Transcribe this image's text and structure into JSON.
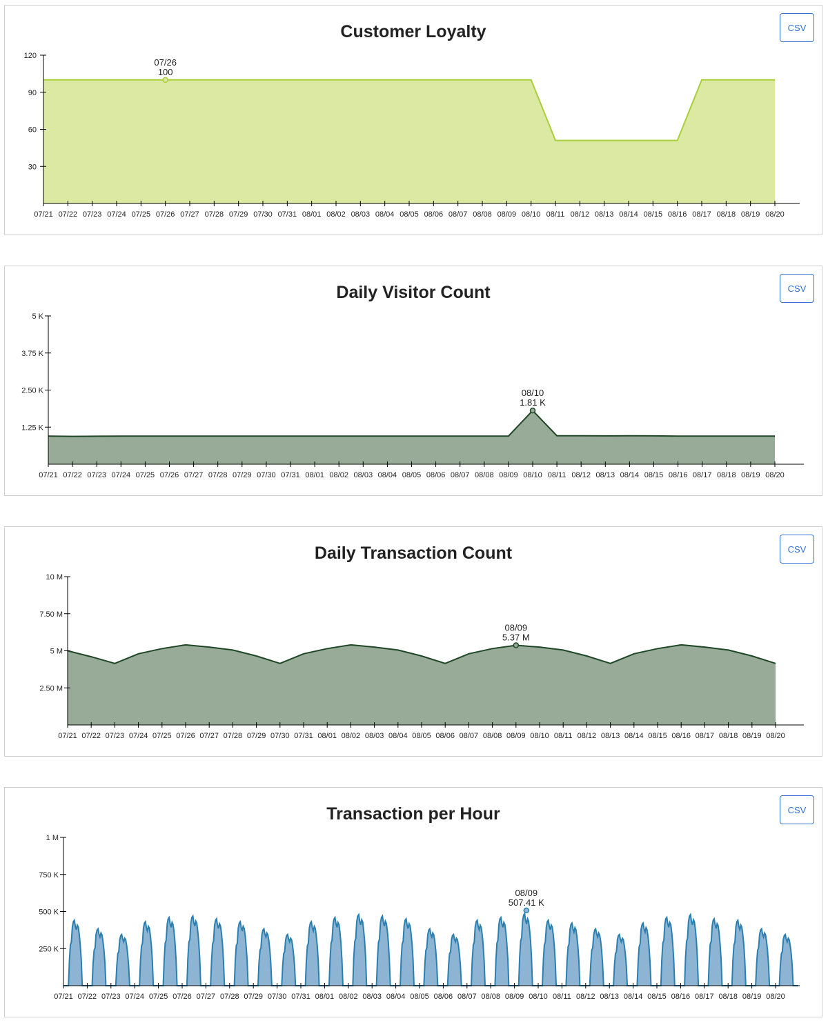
{
  "csv_label": "CSV",
  "dates": [
    "07/21",
    "07/22",
    "07/23",
    "07/24",
    "07/25",
    "07/26",
    "07/27",
    "07/28",
    "07/29",
    "07/30",
    "07/31",
    "08/01",
    "08/02",
    "08/03",
    "08/04",
    "08/05",
    "08/06",
    "08/07",
    "08/08",
    "08/09",
    "08/10",
    "08/11",
    "08/12",
    "08/13",
    "08/14",
    "08/15",
    "08/16",
    "08/17",
    "08/18",
    "08/19",
    "08/20"
  ],
  "chart_data": [
    {
      "type": "area",
      "title": "Customer Loyalty",
      "color": "#a8cf3a",
      "fill": "#dbe9a3",
      "ylim": [
        0,
        120
      ],
      "yticks": [
        {
          "v": 30,
          "label": "30"
        },
        {
          "v": 60,
          "label": "60"
        },
        {
          "v": 90,
          "label": "90"
        },
        {
          "v": 120,
          "label": "120"
        }
      ],
      "values": [
        100,
        100,
        100,
        100,
        100,
        100,
        100,
        100,
        100,
        100,
        100,
        100,
        100,
        100,
        100,
        100,
        100,
        100,
        100,
        100,
        100,
        51,
        51,
        51,
        51,
        51,
        51,
        100,
        100,
        100,
        100
      ],
      "highlight": {
        "index": 5,
        "date_label": "07/26",
        "value_label": "100"
      }
    },
    {
      "type": "area",
      "title": "Daily Visitor Count",
      "color": "#1f4726",
      "fill": "#97ab98",
      "ylim": [
        0,
        5000
      ],
      "yticks": [
        {
          "v": 1250,
          "label": "1.25 K"
        },
        {
          "v": 2500,
          "label": "2.50 K"
        },
        {
          "v": 3750,
          "label": "3.75 K"
        },
        {
          "v": 5000,
          "label": "5 K"
        }
      ],
      "values": [
        950,
        940,
        945,
        950,
        950,
        950,
        950,
        950,
        950,
        950,
        950,
        950,
        950,
        950,
        950,
        950,
        950,
        950,
        950,
        950,
        1810,
        960,
        960,
        955,
        960,
        955,
        950,
        950,
        950,
        950,
        950
      ],
      "highlight": {
        "index": 20,
        "date_label": "08/10",
        "value_label": "1.81 K"
      }
    },
    {
      "type": "area",
      "title": "Daily Transaction Count",
      "color": "#1f4726",
      "fill": "#97ab98",
      "ylim": [
        0,
        10000000
      ],
      "yticks": [
        {
          "v": 2500000,
          "label": "2.50 M"
        },
        {
          "v": 5000000,
          "label": "5 M"
        },
        {
          "v": 7500000,
          "label": "7.50 M"
        },
        {
          "v": 10000000,
          "label": "10 M"
        }
      ],
      "values": [
        5000000,
        4600000,
        4150000,
        4800000,
        5150000,
        5400000,
        5250000,
        5050000,
        4650000,
        4150000,
        4800000,
        5150000,
        5400000,
        5250000,
        5050000,
        4650000,
        4150000,
        4800000,
        5150000,
        5370000,
        5250000,
        5050000,
        4650000,
        4150000,
        4800000,
        5150000,
        5400000,
        5250000,
        5050000,
        4650000,
        4150000
      ],
      "highlight": {
        "index": 19,
        "date_label": "08/09",
        "value_label": "5.37 M"
      }
    },
    {
      "type": "area",
      "title": "Transaction per Hour",
      "color": "#2a7fb0",
      "fill": "#8db5d3",
      "ylim": [
        0,
        1000000
      ],
      "yticks": [
        {
          "v": 250000,
          "label": "250 K"
        },
        {
          "v": 500000,
          "label": "500 K"
        },
        {
          "v": 750000,
          "label": "750 K"
        },
        {
          "v": 1000000,
          "label": "1 M"
        }
      ],
      "daily_peaks": [
        460000,
        400000,
        360000,
        450000,
        480000,
        490000,
        470000,
        450000,
        400000,
        360000,
        450000,
        480000,
        500000,
        490000,
        470000,
        400000,
        360000,
        460000,
        480000,
        507410,
        460000,
        440000,
        400000,
        360000,
        440000,
        480000,
        500000,
        470000,
        460000,
        400000,
        360000
      ],
      "highlight": {
        "index": 19,
        "date_label": "08/09",
        "value_label": "507.41 K"
      }
    }
  ]
}
